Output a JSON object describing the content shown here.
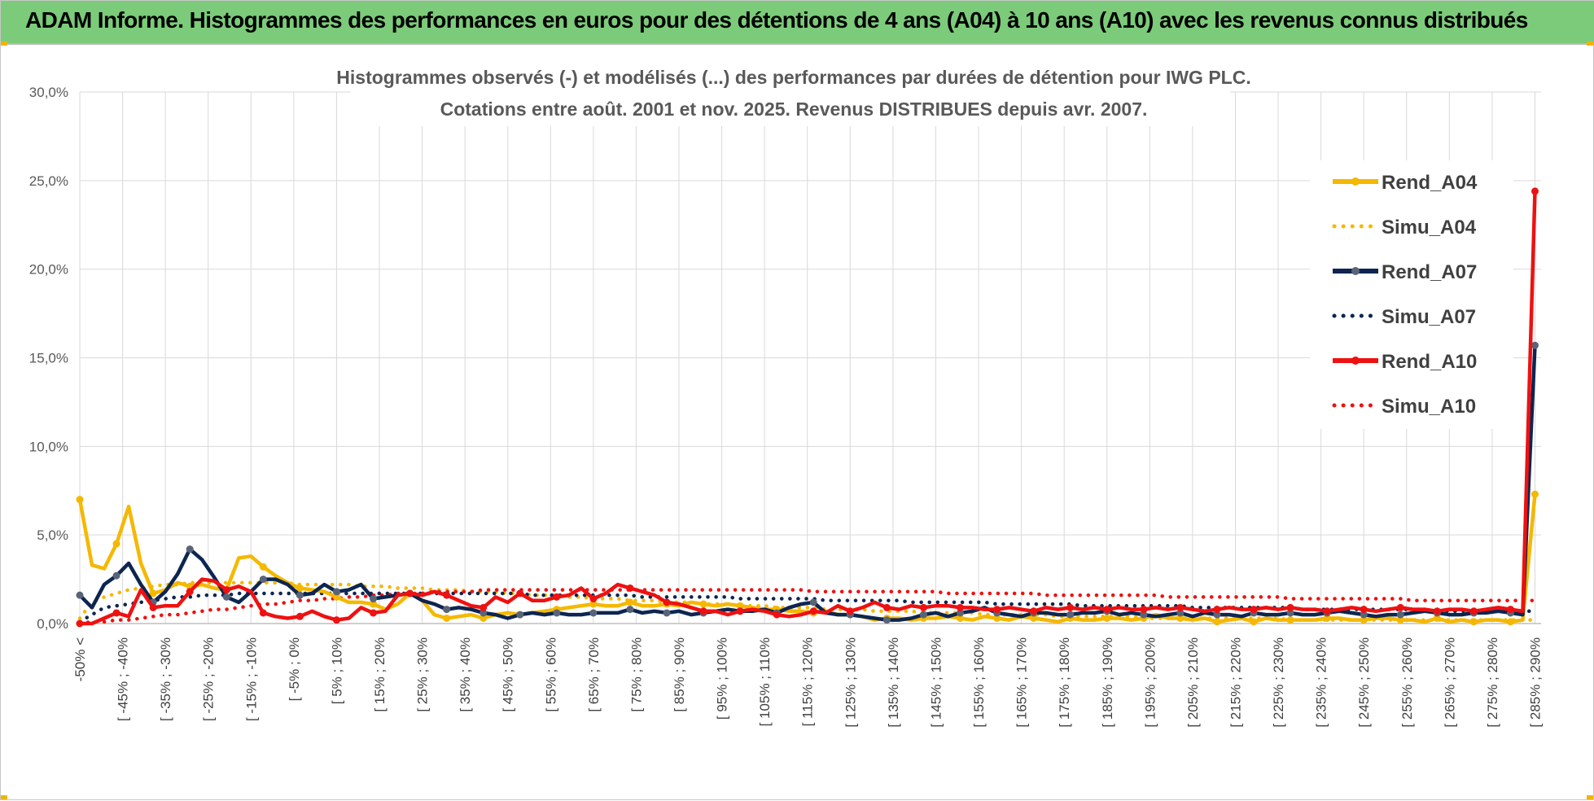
{
  "banner": {
    "title": "ADAM Informe. Histogrammes des performances en euros pour des détentions de 4 ans (A04) à 10 ans (A10) avec les revenus connus distribués"
  },
  "colors": {
    "banner": "#7ccb7a",
    "A04": "#f5b800",
    "A07": "#0d2550",
    "A07_marker": "#5a6478",
    "A10": "#ee1111",
    "corner": "#f0b400"
  },
  "chart_data": {
    "type": "line",
    "title": "Histogrammes observés (-) et modélisés (...) des performances par durées de détention pour IWG PLC.",
    "subtitle": "Cotations entre août. 2001 et nov. 2025. Revenus DISTRIBUES depuis avr. 2007.",
    "xlabel": "",
    "ylabel": "",
    "ylim": [
      0,
      30
    ],
    "y_ticks": [
      "0,0%",
      "5,0%",
      "10,0%",
      "15,0%",
      "20,0%",
      "25,0%",
      "30,0%"
    ],
    "grid": true,
    "legend_position": "top-right",
    "tick_labels": [
      "-50% <",
      "[ -45% ; -40%",
      "[ -35% ; -30%",
      "[ -25% ; -20%",
      "[ -15% ; -10%",
      "[ -5% ; 0%",
      "[ 5% ; 10%",
      "[ 15% ; 20%",
      "[ 25% ; 30%",
      "[ 35% ; 40%",
      "[ 45% ; 50%",
      "[ 55% ; 60%",
      "[ 65% ; 70%",
      "[ 75% ; 80%",
      "[ 85% ; 90%",
      "[ 95% ; 100%",
      "[ 105% ; 110%",
      "[ 115% ; 120%",
      "[ 125% ; 130%",
      "[ 135% ; 140%",
      "[ 145% ; 150%",
      "[ 155% ; 160%",
      "[ 165% ; 170%",
      "[ 175% ; 180%",
      "[ 185% ; 190%",
      "[ 195% ; 200%",
      "[ 205% ; 210%",
      "[ 215% ; 220%",
      "[ 225% ; 230%",
      "[ 235% ; 240%",
      "[ 245% ; 250%",
      "[ 255% ; 260%",
      "[ 265% ; 270%",
      "[ 275% ; 280%",
      "[ 285% ; 290%"
    ],
    "series": [
      {
        "name": "Rend_A04",
        "style": "solid",
        "color": "#f5b800",
        "values": [
          7.0,
          3.3,
          3.1,
          4.5,
          6.6,
          3.4,
          1.7,
          1.9,
          2.3,
          2.1,
          2.2,
          2.0,
          1.9,
          3.7,
          3.8,
          3.2,
          2.7,
          2.3,
          2.0,
          1.9,
          1.8,
          1.5,
          1.2,
          1.2,
          1.1,
          0.8,
          1.1,
          1.7,
          1.3,
          0.5,
          0.3,
          0.4,
          0.5,
          0.3,
          0.5,
          0.6,
          0.5,
          0.6,
          0.7,
          0.8,
          0.9,
          1.0,
          1.1,
          1.0,
          1.0,
          1.2,
          1.0,
          1.0,
          1.1,
          1.0,
          1.2,
          1.1,
          1.0,
          1.1,
          1.0,
          0.9,
          0.8,
          0.8,
          0.7,
          0.7,
          0.6,
          0.7,
          0.5,
          0.5,
          0.4,
          0.2,
          0.3,
          0.3,
          0.2,
          0.3,
          0.3,
          0.4,
          0.3,
          0.2,
          0.4,
          0.3,
          0.2,
          0.4,
          0.3,
          0.2,
          0.1,
          0.3,
          0.2,
          0.2,
          0.3,
          0.3,
          0.2,
          0.3,
          0.5,
          0.3,
          0.3,
          0.2,
          0.3,
          0.1,
          0.2,
          0.3,
          0.1,
          0.3,
          0.2,
          0.2,
          0.2,
          0.2,
          0.3,
          0.3,
          0.2,
          0.2,
          0.3,
          0.3,
          0.2,
          0.2,
          0.1,
          0.3,
          0.1,
          0.2,
          0.1,
          0.2,
          0.2,
          0.1,
          0.2,
          7.3
        ]
      },
      {
        "name": "Simu_A04",
        "style": "dotted",
        "color": "#f5b800",
        "values": [
          0.3,
          1.2,
          1.5,
          1.7,
          1.9,
          2.0,
          2.1,
          2.2,
          2.2,
          2.3,
          2.3,
          2.3,
          2.3,
          2.3,
          2.3,
          2.3,
          2.3,
          2.3,
          2.2,
          2.2,
          2.2,
          2.2,
          2.2,
          2.1,
          2.1,
          2.1,
          2.0,
          2.0,
          2.0,
          1.9,
          1.9,
          1.9,
          1.8,
          1.8,
          1.8,
          1.7,
          1.7,
          1.6,
          1.6,
          1.6,
          1.5,
          1.5,
          1.4,
          1.4,
          1.4,
          1.3,
          1.3,
          1.3,
          1.2,
          1.2,
          1.2,
          1.1,
          1.1,
          1.1,
          1.0,
          1.0,
          1.0,
          0.9,
          0.9,
          0.9,
          0.9,
          0.8,
          0.8,
          0.8,
          0.8,
          0.7,
          0.7,
          0.7,
          0.7,
          0.6,
          0.6,
          0.6,
          0.6,
          0.6,
          0.5,
          0.5,
          0.5,
          0.5,
          0.5,
          0.5,
          0.4,
          0.4,
          0.4,
          0.4,
          0.4,
          0.4,
          0.4,
          0.3,
          0.3,
          0.3,
          0.3,
          0.3,
          0.3,
          0.3,
          0.3,
          0.3,
          0.3,
          0.3,
          0.3,
          0.2,
          0.2,
          0.2,
          0.2,
          0.2,
          0.2,
          0.2,
          0.2,
          0.2,
          0.2,
          0.2,
          0.2,
          0.2,
          0.2,
          0.2,
          0.2,
          0.2,
          0.2,
          0.2,
          0.2,
          0.2
        ]
      },
      {
        "name": "Rend_A07",
        "style": "solid",
        "color": "#0d2550",
        "values": [
          1.6,
          0.9,
          2.2,
          2.7,
          3.4,
          2.2,
          1.2,
          1.8,
          2.8,
          4.2,
          3.6,
          2.6,
          1.5,
          1.2,
          1.8,
          2.5,
          2.5,
          2.2,
          1.6,
          1.7,
          2.2,
          1.8,
          1.9,
          2.2,
          1.4,
          1.5,
          1.6,
          1.7,
          1.3,
          1.1,
          0.8,
          0.9,
          0.8,
          0.6,
          0.5,
          0.3,
          0.5,
          0.6,
          0.5,
          0.6,
          0.5,
          0.5,
          0.6,
          0.6,
          0.6,
          0.8,
          0.6,
          0.7,
          0.6,
          0.7,
          0.5,
          0.6,
          0.7,
          0.8,
          0.7,
          0.7,
          0.8,
          0.6,
          0.9,
          1.1,
          1.2,
          0.6,
          0.5,
          0.5,
          0.4,
          0.3,
          0.2,
          0.2,
          0.3,
          0.5,
          0.6,
          0.4,
          0.6,
          0.7,
          0.9,
          0.6,
          0.5,
          0.4,
          0.6,
          0.6,
          0.5,
          0.5,
          0.6,
          0.6,
          0.7,
          0.5,
          0.6,
          0.5,
          0.4,
          0.5,
          0.6,
          0.4,
          0.6,
          0.5,
          0.5,
          0.4,
          0.6,
          0.5,
          0.5,
          0.6,
          0.5,
          0.5,
          0.6,
          0.7,
          0.6,
          0.5,
          0.4,
          0.5,
          0.5,
          0.6,
          0.7,
          0.6,
          0.5,
          0.5,
          0.6,
          0.6,
          0.7,
          0.6,
          0.5,
          15.7
        ]
      },
      {
        "name": "Simu_A07",
        "style": "dotted",
        "color": "#0d2550",
        "values": [
          0.1,
          0.5,
          0.9,
          1.0,
          1.1,
          1.2,
          1.3,
          1.4,
          1.5,
          1.5,
          1.6,
          1.6,
          1.6,
          1.7,
          1.7,
          1.7,
          1.7,
          1.7,
          1.7,
          1.7,
          1.7,
          1.7,
          1.7,
          1.7,
          1.7,
          1.7,
          1.7,
          1.7,
          1.7,
          1.7,
          1.7,
          1.7,
          1.7,
          1.7,
          1.7,
          1.7,
          1.7,
          1.6,
          1.6,
          1.6,
          1.6,
          1.6,
          1.6,
          1.6,
          1.6,
          1.6,
          1.5,
          1.5,
          1.5,
          1.5,
          1.5,
          1.5,
          1.5,
          1.5,
          1.4,
          1.4,
          1.4,
          1.4,
          1.4,
          1.4,
          1.4,
          1.3,
          1.3,
          1.3,
          1.3,
          1.3,
          1.3,
          1.3,
          1.2,
          1.2,
          1.2,
          1.2,
          1.2,
          1.2,
          1.2,
          1.1,
          1.1,
          1.1,
          1.1,
          1.1,
          1.1,
          1.1,
          1.0,
          1.0,
          1.0,
          1.0,
          1.0,
          1.0,
          1.0,
          1.0,
          1.0,
          0.9,
          0.9,
          0.9,
          0.9,
          0.9,
          0.9,
          0.9,
          0.9,
          0.9,
          0.8,
          0.8,
          0.8,
          0.8,
          0.8,
          0.8,
          0.8,
          0.8,
          0.8,
          0.8,
          0.7,
          0.7,
          0.7,
          0.7,
          0.7,
          0.7,
          0.7,
          0.7,
          0.7,
          0.7
        ]
      },
      {
        "name": "Rend_A10",
        "style": "solid",
        "color": "#ee1111",
        "values": [
          0.0,
          0.0,
          0.3,
          0.6,
          0.4,
          1.9,
          0.9,
          1.0,
          1.0,
          1.8,
          2.5,
          2.4,
          1.9,
          2.1,
          1.8,
          0.6,
          0.4,
          0.3,
          0.4,
          0.7,
          0.4,
          0.2,
          0.3,
          0.9,
          0.6,
          0.7,
          1.6,
          1.7,
          1.6,
          1.8,
          1.6,
          1.3,
          1.0,
          0.9,
          1.5,
          1.2,
          1.7,
          1.3,
          1.3,
          1.5,
          1.6,
          2.0,
          1.4,
          1.7,
          2.2,
          2.0,
          1.8,
          1.6,
          1.2,
          1.1,
          0.9,
          0.7,
          0.7,
          0.5,
          0.7,
          0.8,
          0.7,
          0.5,
          0.4,
          0.5,
          0.7,
          0.6,
          1.0,
          0.7,
          0.9,
          1.2,
          0.9,
          0.8,
          1.0,
          0.9,
          1.0,
          1.0,
          0.9,
          0.9,
          0.8,
          0.8,
          0.9,
          0.8,
          0.7,
          0.9,
          0.8,
          0.9,
          0.8,
          0.9,
          0.8,
          0.9,
          0.8,
          0.8,
          0.9,
          0.8,
          0.9,
          0.8,
          0.7,
          0.8,
          0.9,
          0.8,
          0.8,
          0.9,
          0.8,
          0.9,
          0.8,
          0.8,
          0.7,
          0.8,
          0.9,
          0.8,
          0.7,
          0.8,
          0.9,
          0.8,
          0.8,
          0.7,
          0.8,
          0.8,
          0.7,
          0.8,
          0.9,
          0.8,
          0.7,
          24.4
        ]
      },
      {
        "name": "Simu_A10",
        "style": "dotted",
        "color": "#ee1111",
        "values": [
          0.0,
          0.1,
          0.1,
          0.2,
          0.2,
          0.3,
          0.4,
          0.5,
          0.5,
          0.6,
          0.7,
          0.8,
          0.8,
          0.9,
          1.0,
          1.1,
          1.1,
          1.2,
          1.3,
          1.3,
          1.4,
          1.4,
          1.5,
          1.5,
          1.6,
          1.6,
          1.7,
          1.7,
          1.7,
          1.8,
          1.8,
          1.8,
          1.8,
          1.9,
          1.9,
          1.9,
          1.9,
          1.9,
          1.9,
          1.9,
          1.9,
          1.9,
          1.9,
          1.9,
          1.9,
          1.9,
          1.9,
          1.9,
          1.9,
          1.9,
          1.9,
          1.9,
          1.9,
          1.9,
          1.9,
          1.9,
          1.9,
          1.9,
          1.9,
          1.9,
          1.8,
          1.8,
          1.8,
          1.8,
          1.8,
          1.8,
          1.8,
          1.8,
          1.8,
          1.8,
          1.8,
          1.7,
          1.7,
          1.7,
          1.7,
          1.7,
          1.7,
          1.7,
          1.7,
          1.6,
          1.6,
          1.6,
          1.6,
          1.6,
          1.6,
          1.6,
          1.6,
          1.6,
          1.6,
          1.5,
          1.5,
          1.5,
          1.5,
          1.5,
          1.5,
          1.5,
          1.5,
          1.5,
          1.5,
          1.4,
          1.4,
          1.4,
          1.4,
          1.4,
          1.4,
          1.4,
          1.4,
          1.4,
          1.4,
          1.3,
          1.3,
          1.3,
          1.3,
          1.3,
          1.3,
          1.3,
          1.3,
          1.3,
          1.3,
          1.3
        ]
      }
    ]
  }
}
